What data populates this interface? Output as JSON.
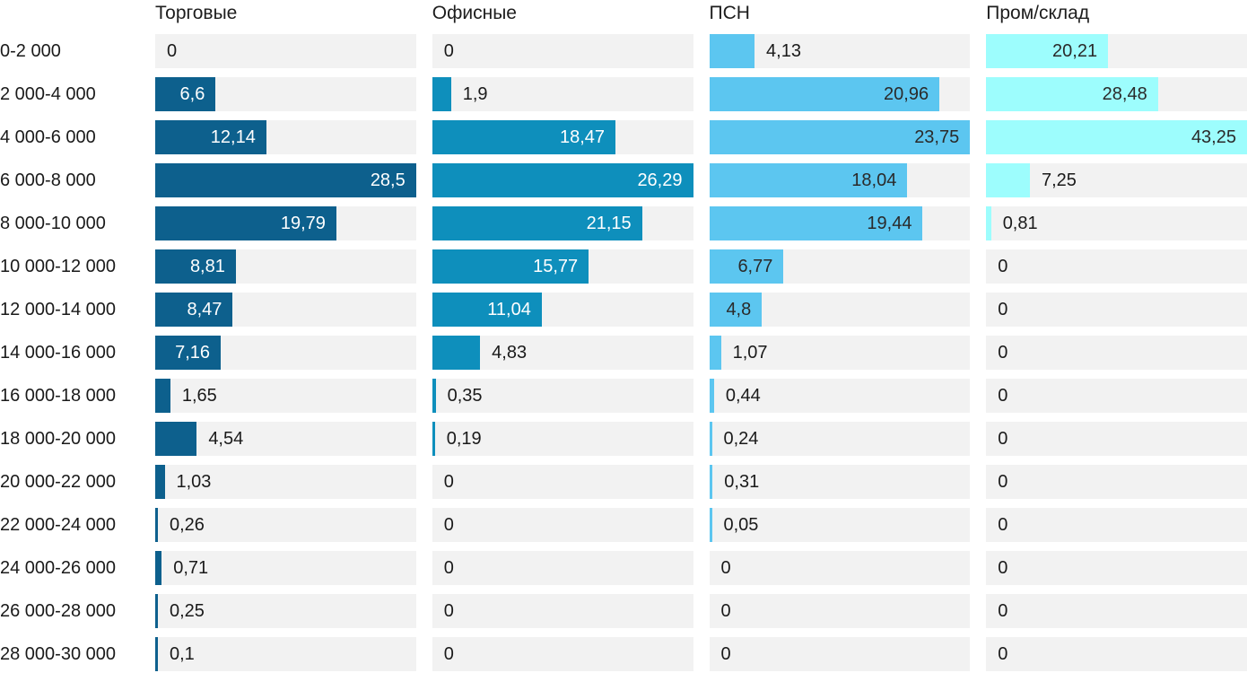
{
  "chart_data": {
    "type": "bar",
    "orientation": "horizontal",
    "scale": "per-column-max",
    "grid": "off",
    "legend": "column-headers-top",
    "track_color": "#f2f2f2",
    "text_color_dark": "#1a1a1a",
    "text_color_light": "#ffffff",
    "categories": [
      "0-2 000",
      "2 000-4 000",
      "4 000-6 000",
      "6 000-8 000",
      "8 000-10 000",
      "10 000-12 000",
      "12 000-14 000",
      "14 000-16 000",
      "16 000-18 000",
      "18 000-20 000",
      "20 000-22 000",
      "22 000-24 000",
      "24 000-26 000",
      "26 000-28 000",
      "28 000-30 000"
    ],
    "series": [
      {
        "name": "Торговые",
        "color": "#0d608d",
        "label_inside_color": "#ffffff",
        "max": 28.5,
        "values": [
          0,
          6.6,
          12.14,
          28.5,
          19.79,
          8.81,
          8.47,
          7.16,
          1.65,
          4.54,
          1.03,
          0.26,
          0.71,
          0.25,
          0.1
        ]
      },
      {
        "name": "Офисные",
        "color": "#0e8fbc",
        "label_inside_color": "#ffffff",
        "max": 26.29,
        "values": [
          0,
          1.9,
          18.47,
          26.29,
          21.15,
          15.77,
          11.04,
          4.83,
          0.35,
          0.19,
          0,
          0,
          0,
          0,
          0
        ]
      },
      {
        "name": "ПСН",
        "color": "#5cc6f0",
        "label_inside_color": "#2a2a2a",
        "max": 23.75,
        "values": [
          4.13,
          20.96,
          23.75,
          18.04,
          19.44,
          6.77,
          4.8,
          1.07,
          0.44,
          0.24,
          0.31,
          0.05,
          0,
          0,
          0
        ]
      },
      {
        "name": "Пром/склад",
        "color": "#9dfdfd",
        "label_inside_color": "#2a2a2a",
        "max": 43.25,
        "values": [
          20.21,
          28.48,
          43.25,
          7.25,
          0.81,
          0,
          0,
          0,
          0,
          0,
          0,
          0,
          0,
          0,
          0
        ]
      }
    ],
    "decimal_separator": ","
  }
}
